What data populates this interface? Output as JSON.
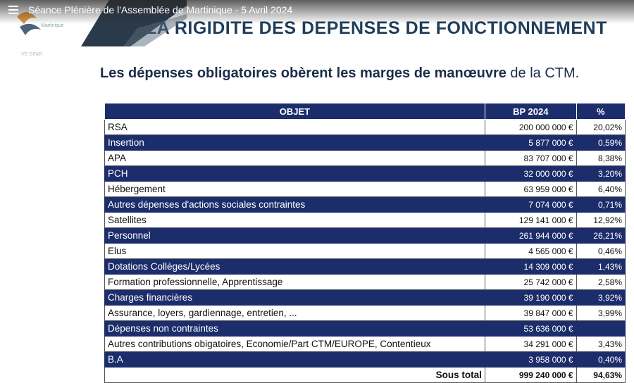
{
  "player": {
    "title": "Séance Plénière de l'Assemblée de Martinique - 5 Avril 2024"
  },
  "logo": {
    "text": "Martinique",
    "subtext": "VE-SPAR"
  },
  "slide": {
    "title": "LA RIGIDITE DES DEPENSES DE FONCTIONNEMENT",
    "subtitle_bold": "Les dépenses obligatoires obèrent les marges de manœuvre",
    "subtitle_rest": " de la CTM."
  },
  "table": {
    "headers": {
      "objet": "OBJET",
      "bp": "BP 2024",
      "pct": "%"
    },
    "rows": [
      {
        "objet": "RSA",
        "bp": "200 000 000 €",
        "pct": "20,02%",
        "style": "light"
      },
      {
        "objet": "Insertion",
        "bp": "5 877 000 €",
        "pct": "0,59%",
        "style": "dark"
      },
      {
        "objet": "APA",
        "bp": "83 707 000 €",
        "pct": "8,38%",
        "style": "light"
      },
      {
        "objet": "PCH",
        "bp": "32 000 000 €",
        "pct": "3,20%",
        "style": "dark"
      },
      {
        "objet": "Hébergement",
        "bp": "63 959 000 €",
        "pct": "6,40%",
        "style": "light"
      },
      {
        "objet": "Autres dépenses d'actions sociales contraintes",
        "bp": "7 074 000 €",
        "pct": "0,71%",
        "style": "dark"
      },
      {
        "objet": "Satellites",
        "bp": "129 141 000 €",
        "pct": "12,92%",
        "style": "light"
      },
      {
        "objet": "Personnel",
        "bp": "261 944 000 €",
        "pct": "26,21%",
        "style": "dark"
      },
      {
        "objet": "Elus",
        "bp": "4 565 000 €",
        "pct": "0,46%",
        "style": "light"
      },
      {
        "objet": "Dotations Collèges/Lycées",
        "bp": "14 309 000 €",
        "pct": "1,43%",
        "style": "dark"
      },
      {
        "objet": "Formation professionnelle, Apprentissage",
        "bp": "25 742 000 €",
        "pct": "2,58%",
        "style": "light"
      },
      {
        "objet": "Charges financières",
        "bp": "39 190 000 €",
        "pct": "3,92%",
        "style": "dark"
      },
      {
        "objet": "Assurance, loyers, gardiennage, entretien, ...",
        "bp": "39 847 000 €",
        "pct": "3,99%",
        "style": "light"
      },
      {
        "objet": "Dépenses non contraintes",
        "bp": "53 636 000 €",
        "pct": "",
        "style": "dark"
      },
      {
        "objet": "Autres contributions obigatoires, Economie/Part CTM/EUROPE, Contentieux",
        "bp": "34 291 000 €",
        "pct": "3,43%",
        "style": "light"
      },
      {
        "objet": "B.A",
        "bp": "3 958 000 €",
        "pct": "0,40%",
        "style": "dark"
      }
    ],
    "total": {
      "label": "Sous total",
      "bp": "999 240 000 €",
      "pct": "94,63%"
    }
  },
  "colors": {
    "table_dark": "#1c2d6b",
    "title": "#1f3c5a",
    "logo_orange": "#e08a2a"
  }
}
